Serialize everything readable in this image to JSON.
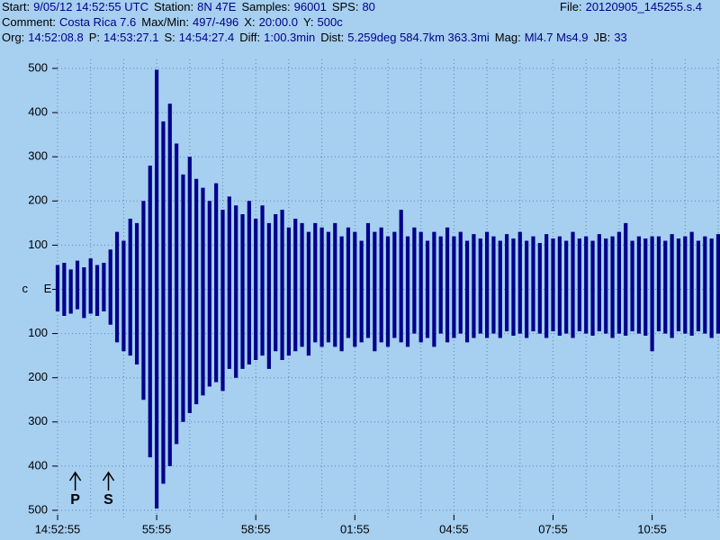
{
  "header": [
    [
      {
        "k": "Start:",
        "v": "9/05/12 14:52:55 UTC"
      },
      {
        "k": "Station:",
        "v": "8N 47E"
      },
      {
        "k": "Samples:",
        "v": "96001"
      },
      {
        "k": "SPS:",
        "v": "80"
      }
    ],
    [
      {
        "k": "Comment:",
        "v": "Costa Rica 7.6"
      },
      {
        "k": "Max/Min:",
        "v": "497/-496"
      },
      {
        "k": "X:",
        "v": "20:00.0"
      },
      {
        "k": "Y:",
        "v": "500c"
      }
    ],
    [
      {
        "k": "Org:",
        "v": "14:52:08.8"
      },
      {
        "k": "P:",
        "v": "14:53:27.1"
      },
      {
        "k": "S:",
        "v": "14:54:27.4"
      },
      {
        "k": "Diff:",
        "v": "1:00.3min"
      },
      {
        "k": "Dist:",
        "v": "5.259deg 584.7km 363.3mi"
      },
      {
        "k": "Mag:",
        "v": "Ml4.7 Ms4.9"
      },
      {
        "k": "JB:",
        "v": "33"
      }
    ]
  ],
  "file": {
    "k": "File:",
    "v": "20120905_145255.s.4"
  },
  "chart_data": {
    "type": "seismogram",
    "component": "E",
    "xlim": [
      0,
      20
    ],
    "ylim": [
      -500,
      500
    ],
    "xticks": [
      {
        "value": 0,
        "label": "14:52:55"
      },
      {
        "value": 3,
        "label": "55:55"
      },
      {
        "value": 6,
        "label": "58:55"
      },
      {
        "value": 9,
        "label": "01:55"
      },
      {
        "value": 12,
        "label": "04:55"
      },
      {
        "value": 15,
        "label": "07:55"
      },
      {
        "value": 18,
        "label": "10:55"
      }
    ],
    "xgrid": [
      0,
      1,
      2,
      3,
      4,
      5,
      6,
      7,
      8,
      9,
      10,
      11,
      12,
      13,
      14,
      15,
      16,
      17,
      18,
      19,
      20
    ],
    "yticks": [
      500,
      400,
      300,
      200,
      100,
      {
        "value": 0,
        "label": "c"
      },
      {
        "value": -100,
        "label": "100"
      },
      {
        "value": -200,
        "label": "200"
      },
      {
        "value": -300,
        "label": "300"
      },
      {
        "value": -400,
        "label": "400"
      },
      {
        "value": -500,
        "label": "500"
      }
    ],
    "grid": true,
    "picks": [
      {
        "label": "P",
        "x": 0.535
      },
      {
        "label": "S",
        "x": 1.54
      }
    ],
    "x": [
      0,
      0.2,
      0.4,
      0.6,
      0.8,
      1,
      1.2,
      1.4,
      1.6,
      1.8,
      2,
      2.2,
      2.4,
      2.6,
      2.8,
      3,
      3.2,
      3.4,
      3.6,
      3.8,
      4,
      4.2,
      4.4,
      4.6,
      4.8,
      5,
      5.2,
      5.4,
      5.6,
      5.8,
      6,
      6.2,
      6.4,
      6.6,
      6.8,
      7,
      7.2,
      7.4,
      7.6,
      7.8,
      8,
      8.2,
      8.4,
      8.6,
      8.8,
      9,
      9.2,
      9.4,
      9.6,
      9.8,
      10,
      10.2,
      10.4,
      10.6,
      10.8,
      11,
      11.2,
      11.4,
      11.6,
      11.8,
      12,
      12.2,
      12.4,
      12.6,
      12.8,
      13,
      13.2,
      13.4,
      13.6,
      13.8,
      14,
      14.2,
      14.4,
      14.6,
      14.8,
      15,
      15.2,
      15.4,
      15.6,
      15.8,
      16,
      16.2,
      16.4,
      16.6,
      16.8,
      17,
      17.2,
      17.4,
      17.6,
      17.8,
      18,
      18.2,
      18.4,
      18.6,
      18.8,
      19,
      19.2,
      19.4,
      19.6,
      19.8,
      20
    ],
    "series": [
      {
        "name": "max",
        "color": "#00008b",
        "values": [
          55,
          60,
          45,
          65,
          50,
          70,
          55,
          60,
          90,
          130,
          110,
          160,
          150,
          200,
          280,
          497,
          380,
          420,
          330,
          260,
          300,
          250,
          230,
          200,
          240,
          180,
          210,
          190,
          170,
          200,
          160,
          190,
          150,
          170,
          180,
          140,
          160,
          150,
          130,
          150,
          140,
          130,
          150,
          120,
          140,
          130,
          110,
          150,
          130,
          140,
          120,
          130,
          180,
          120,
          140,
          130,
          110,
          130,
          120,
          140,
          120,
          130,
          110,
          125,
          115,
          130,
          120,
          110,
          125,
          115,
          130,
          110,
          120,
          105,
          125,
          115,
          120,
          110,
          130,
          115,
          120,
          110,
          125,
          115,
          120,
          130,
          150,
          110,
          120,
          115,
          120,
          120,
          110,
          125,
          115,
          120,
          130,
          110,
          120,
          115,
          125
        ]
      },
      {
        "name": "min",
        "color": "#00008b",
        "values": [
          -50,
          -60,
          -55,
          -45,
          -65,
          -55,
          -60,
          -50,
          -80,
          -120,
          -140,
          -150,
          -170,
          -250,
          -380,
          -496,
          -440,
          -400,
          -350,
          -300,
          -280,
          -260,
          -240,
          -220,
          -210,
          -230,
          -180,
          -200,
          -180,
          -170,
          -160,
          -150,
          -180,
          -140,
          -160,
          -150,
          -140,
          -130,
          -150,
          -120,
          -130,
          -120,
          -130,
          -140,
          -110,
          -130,
          -120,
          -110,
          -140,
          -120,
          -130,
          -110,
          -120,
          -130,
          -100,
          -120,
          -110,
          -130,
          -100,
          -120,
          -110,
          -100,
          -120,
          -110,
          -100,
          -110,
          -100,
          -110,
          -95,
          -105,
          -100,
          -110,
          -95,
          -100,
          -110,
          -95,
          -105,
          -100,
          -110,
          -95,
          -100,
          -105,
          -95,
          -100,
          -110,
          -100,
          -105,
          -95,
          -100,
          -105,
          -140,
          -95,
          -100,
          -110,
          -95,
          -100,
          -105,
          -95,
          -100,
          -110,
          -100
        ]
      }
    ]
  }
}
